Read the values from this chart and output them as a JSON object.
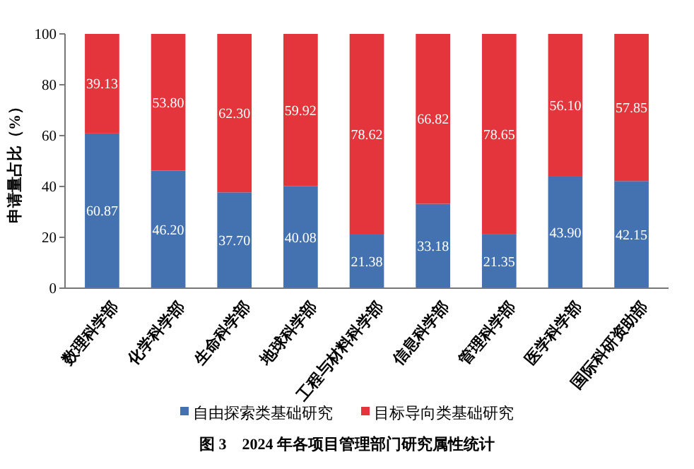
{
  "chart_data": {
    "type": "bar",
    "stacked": true,
    "ylabel": "申请量占比（%）",
    "annotations": [
      "图 3　2024 年各项目管理部门研究属性统计"
    ],
    "categories": [
      "数理科学部",
      "化学科学部",
      "生命科学部",
      "地球科学部",
      "工程与材料科学部",
      "信息科学部",
      "管理科学部",
      "医学科学部",
      "国际科研资助部"
    ],
    "series": [
      {
        "name": "自由探索类基础研究",
        "color": "#4472b0",
        "values": [
          60.87,
          46.2,
          37.7,
          40.08,
          21.38,
          33.18,
          21.35,
          43.9,
          42.15
        ],
        "value_labels": [
          "60.87",
          "46.20",
          "37.70",
          "40.08",
          "21.38",
          "33.18",
          "21.35",
          "43.90",
          "42.15"
        ]
      },
      {
        "name": "目标导向类基础研究",
        "color": "#e3353b",
        "values": [
          39.13,
          53.8,
          62.3,
          59.92,
          78.62,
          66.82,
          78.65,
          56.1,
          57.85
        ],
        "value_labels": [
          "39.13",
          "53.80",
          "62.30",
          "59.92",
          "78.62",
          "66.82",
          "78.65",
          "56.10",
          "57.85"
        ]
      }
    ],
    "ylim": [
      0,
      100
    ],
    "yticks": [
      0,
      20,
      40,
      60,
      80,
      100
    ],
    "legend": "bottom",
    "grid": false
  }
}
